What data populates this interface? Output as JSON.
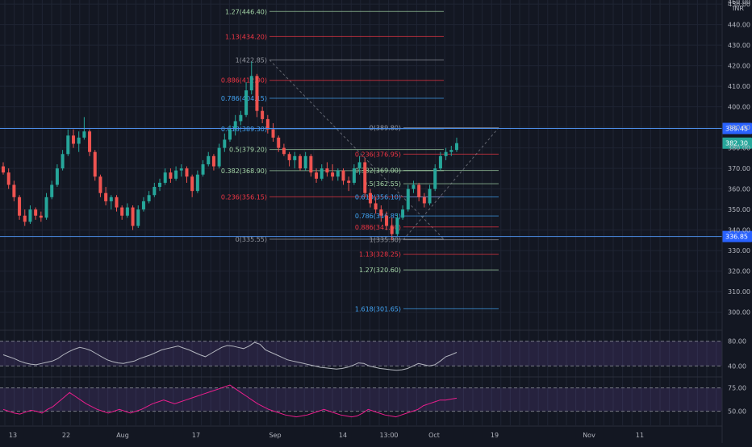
{
  "chart_data": {
    "type": "candlestick",
    "currency": "INR",
    "xlabels": [
      "13",
      "22",
      "Aug",
      "17",
      "Sep",
      "14",
      "13:00",
      "Oct",
      "19",
      "Nov",
      "11"
    ],
    "price_axis": {
      "ylim": [
        292,
        452
      ],
      "ticks": [
        300,
        310,
        320,
        330,
        340,
        350,
        360,
        370,
        380,
        390,
        400,
        410,
        420,
        430,
        440,
        450
      ],
      "tick_labels": [
        "300.00",
        "310.00",
        "320.00",
        "330.00",
        "340.00",
        "350.00",
        "360.00",
        "370.00",
        "380.00",
        "390.00",
        "400.00",
        "410.00",
        "420.00",
        "430.00",
        "440.00",
        "450.00"
      ],
      "top_label": "460.00"
    },
    "candles": [
      {
        "o": 371,
        "h": 373,
        "l": 367,
        "c": 368
      },
      {
        "o": 368,
        "h": 370,
        "l": 360,
        "c": 362
      },
      {
        "o": 362,
        "h": 364,
        "l": 354,
        "c": 356
      },
      {
        "o": 356,
        "h": 357,
        "l": 345,
        "c": 347
      },
      {
        "o": 347,
        "h": 350,
        "l": 342,
        "c": 344
      },
      {
        "o": 344,
        "h": 352,
        "l": 343,
        "c": 350
      },
      {
        "o": 350,
        "h": 351,
        "l": 345,
        "c": 347
      },
      {
        "o": 347,
        "h": 349,
        "l": 344,
        "c": 346
      },
      {
        "o": 346,
        "h": 358,
        "l": 345,
        "c": 356
      },
      {
        "o": 356,
        "h": 364,
        "l": 355,
        "c": 362
      },
      {
        "o": 362,
        "h": 372,
        "l": 361,
        "c": 370
      },
      {
        "o": 370,
        "h": 379,
        "l": 369,
        "c": 377
      },
      {
        "o": 377,
        "h": 389,
        "l": 376,
        "c": 386
      },
      {
        "o": 386,
        "h": 389,
        "l": 380,
        "c": 382
      },
      {
        "o": 382,
        "h": 388,
        "l": 378,
        "c": 385
      },
      {
        "o": 385,
        "h": 395,
        "l": 384,
        "c": 388
      },
      {
        "o": 388,
        "h": 389,
        "l": 376,
        "c": 378
      },
      {
        "o": 378,
        "h": 379,
        "l": 364,
        "c": 366
      },
      {
        "o": 366,
        "h": 367,
        "l": 356,
        "c": 358
      },
      {
        "o": 358,
        "h": 361,
        "l": 352,
        "c": 354
      },
      {
        "o": 354,
        "h": 357,
        "l": 350,
        "c": 356
      },
      {
        "o": 356,
        "h": 357,
        "l": 349,
        "c": 351
      },
      {
        "o": 351,
        "h": 352,
        "l": 345,
        "c": 347
      },
      {
        "o": 347,
        "h": 353,
        "l": 346,
        "c": 351
      },
      {
        "o": 351,
        "h": 352,
        "l": 340,
        "c": 342
      },
      {
        "o": 342,
        "h": 352,
        "l": 341,
        "c": 350
      },
      {
        "o": 350,
        "h": 356,
        "l": 349,
        "c": 354
      },
      {
        "o": 354,
        "h": 359,
        "l": 353,
        "c": 357
      },
      {
        "o": 357,
        "h": 363,
        "l": 356,
        "c": 361
      },
      {
        "o": 361,
        "h": 365,
        "l": 359,
        "c": 363
      },
      {
        "o": 363,
        "h": 370,
        "l": 362,
        "c": 368
      },
      {
        "o": 368,
        "h": 370,
        "l": 363,
        "c": 365
      },
      {
        "o": 365,
        "h": 371,
        "l": 364,
        "c": 369
      },
      {
        "o": 369,
        "h": 372,
        "l": 366,
        "c": 370
      },
      {
        "o": 370,
        "h": 371,
        "l": 363,
        "c": 366
      },
      {
        "o": 366,
        "h": 367,
        "l": 356,
        "c": 359
      },
      {
        "o": 359,
        "h": 369,
        "l": 358,
        "c": 367
      },
      {
        "o": 367,
        "h": 374,
        "l": 366,
        "c": 372
      },
      {
        "o": 372,
        "h": 378,
        "l": 371,
        "c": 376
      },
      {
        "o": 376,
        "h": 377,
        "l": 369,
        "c": 371
      },
      {
        "o": 371,
        "h": 382,
        "l": 370,
        "c": 380
      },
      {
        "o": 380,
        "h": 387,
        "l": 378,
        "c": 384
      },
      {
        "o": 384,
        "h": 391,
        "l": 383,
        "c": 389
      },
      {
        "o": 389,
        "h": 396,
        "l": 386,
        "c": 393
      },
      {
        "o": 393,
        "h": 398,
        "l": 391,
        "c": 396
      },
      {
        "o": 396,
        "h": 412,
        "l": 395,
        "c": 408
      },
      {
        "o": 408,
        "h": 422,
        "l": 406,
        "c": 415
      },
      {
        "o": 415,
        "h": 416,
        "l": 395,
        "c": 398
      },
      {
        "o": 398,
        "h": 400,
        "l": 392,
        "c": 394
      },
      {
        "o": 394,
        "h": 396,
        "l": 387,
        "c": 389
      },
      {
        "o": 389,
        "h": 392,
        "l": 383,
        "c": 385
      },
      {
        "o": 385,
        "h": 386,
        "l": 378,
        "c": 380
      },
      {
        "o": 380,
        "h": 382,
        "l": 376,
        "c": 377
      },
      {
        "o": 377,
        "h": 378,
        "l": 371,
        "c": 374
      },
      {
        "o": 374,
        "h": 378,
        "l": 370,
        "c": 376
      },
      {
        "o": 376,
        "h": 377,
        "l": 369,
        "c": 370
      },
      {
        "o": 370,
        "h": 378,
        "l": 369,
        "c": 376
      },
      {
        "o": 376,
        "h": 377,
        "l": 366,
        "c": 368
      },
      {
        "o": 368,
        "h": 370,
        "l": 363,
        "c": 365
      },
      {
        "o": 365,
        "h": 372,
        "l": 364,
        "c": 370
      },
      {
        "o": 370,
        "h": 373,
        "l": 366,
        "c": 368
      },
      {
        "o": 368,
        "h": 372,
        "l": 364,
        "c": 366
      },
      {
        "o": 366,
        "h": 370,
        "l": 364,
        "c": 369
      },
      {
        "o": 369,
        "h": 370,
        "l": 362,
        "c": 364
      },
      {
        "o": 364,
        "h": 366,
        "l": 359,
        "c": 363
      },
      {
        "o": 363,
        "h": 372,
        "l": 362,
        "c": 370
      },
      {
        "o": 370,
        "h": 376,
        "l": 367,
        "c": 373
      },
      {
        "o": 373,
        "h": 375,
        "l": 356,
        "c": 358
      },
      {
        "o": 358,
        "h": 360,
        "l": 351,
        "c": 353
      },
      {
        "o": 353,
        "h": 356,
        "l": 348,
        "c": 350
      },
      {
        "o": 350,
        "h": 352,
        "l": 344,
        "c": 347
      },
      {
        "o": 347,
        "h": 349,
        "l": 340,
        "c": 342
      },
      {
        "o": 342,
        "h": 346,
        "l": 335,
        "c": 338
      },
      {
        "o": 338,
        "h": 348,
        "l": 337,
        "c": 346
      },
      {
        "o": 346,
        "h": 352,
        "l": 345,
        "c": 350
      },
      {
        "o": 350,
        "h": 362,
        "l": 349,
        "c": 360
      },
      {
        "o": 360,
        "h": 364,
        "l": 358,
        "c": 362
      },
      {
        "o": 362,
        "h": 363,
        "l": 354,
        "c": 356
      },
      {
        "o": 356,
        "h": 358,
        "l": 351,
        "c": 353
      },
      {
        "o": 353,
        "h": 362,
        "l": 352,
        "c": 360
      },
      {
        "o": 360,
        "h": 372,
        "l": 359,
        "c": 370
      },
      {
        "o": 370,
        "h": 378,
        "l": 369,
        "c": 376
      },
      {
        "o": 376,
        "h": 380,
        "l": 374,
        "c": 378
      },
      {
        "o": 378,
        "h": 381,
        "l": 376,
        "c": 379
      },
      {
        "o": 379,
        "h": 385,
        "l": 378,
        "c": 382.3
      }
    ],
    "price_labels": [
      {
        "text": "389.45",
        "value": 389.45,
        "type": "line"
      },
      {
        "text": "382.30",
        "value": 382.3,
        "type": "last"
      },
      {
        "text": "336.85",
        "value": 336.85,
        "type": "line"
      }
    ],
    "fib_set1": [
      {
        "label": "1.27(446.40)",
        "value": 446.4,
        "color": "#a5d6a7"
      },
      {
        "label": "1.13(434.20)",
        "value": 434.2,
        "color": "#f23645"
      },
      {
        "label": "1(422.85)",
        "value": 422.85,
        "color": "#9598a1"
      },
      {
        "label": "0.886(412.90)",
        "value": 412.9,
        "color": "#f23645"
      },
      {
        "label": "0.786(404.15)",
        "value": 404.15,
        "color": "#42a5f5"
      },
      {
        "label": "0.618(389.30)",
        "value": 389.3,
        "color": "#42a5f5"
      },
      {
        "label": "0.5(379.20)",
        "value": 379.2,
        "color": "#a5d6a7"
      },
      {
        "label": "0.382(368.90)",
        "value": 368.9,
        "color": "#a5d6a7"
      },
      {
        "label": "0.236(356.15)",
        "value": 356.15,
        "color": "#f23645"
      },
      {
        "label": "0(335.55)",
        "value": 335.55,
        "color": "#9598a1"
      }
    ],
    "fib_set2": [
      {
        "label": "0(389.80)",
        "value": 389.8,
        "color": "#9598a1"
      },
      {
        "label": "0.236(376.95)",
        "value": 376.95,
        "color": "#f23645"
      },
      {
        "label": "0.382(369.00)",
        "value": 369.0,
        "color": "#a5d6a7"
      },
      {
        "label": "0.5(362.55)",
        "value": 362.55,
        "color": "#a5d6a7"
      },
      {
        "label": "0.618(356.10)",
        "value": 356.1,
        "color": "#42a5f5"
      },
      {
        "label": "0.786(346.85)",
        "value": 346.85,
        "color": "#42a5f5"
      },
      {
        "label": "0.886(341.50)",
        "value": 341.5,
        "color": "#f23645"
      },
      {
        "label": "1(335.30)",
        "value": 335.3,
        "color": "#9598a1"
      },
      {
        "label": "1.13(328.25)",
        "value": 328.25,
        "color": "#f23645"
      },
      {
        "label": "1.27(320.60)",
        "value": 320.6,
        "color": "#a5d6a7"
      },
      {
        "label": "1.618(301.65)",
        "value": 301.65,
        "color": "#42a5f5"
      }
    ],
    "rsi1": {
      "ylim": [
        25,
        95
      ],
      "ticks": [
        80,
        40
      ],
      "tick_labels": [
        "80.00",
        "40.00"
      ],
      "values": [
        58,
        55,
        52,
        48,
        45,
        43,
        42,
        44,
        46,
        48,
        52,
        58,
        63,
        67,
        70,
        68,
        65,
        60,
        55,
        50,
        47,
        45,
        44,
        46,
        48,
        52,
        55,
        58,
        62,
        66,
        68,
        70,
        72,
        69,
        66,
        62,
        58,
        55,
        60,
        65,
        70,
        73,
        72,
        70,
        68,
        72,
        78,
        75,
        66,
        62,
        58,
        54,
        50,
        48,
        46,
        44,
        42,
        40,
        38,
        37,
        36,
        35,
        36,
        38,
        41,
        45,
        44,
        40,
        38,
        36,
        35,
        34,
        33,
        34,
        36,
        40,
        44,
        42,
        40,
        42,
        48,
        55,
        58,
        62
      ]
    },
    "rsi2": {
      "ylim": [
        35,
        85
      ],
      "ticks": [
        75,
        50
      ],
      "tick_labels": [
        "75.00",
        "50.00"
      ],
      "values": [
        52,
        50,
        48,
        47,
        49,
        51,
        50,
        48,
        52,
        55,
        60,
        65,
        70,
        66,
        62,
        58,
        55,
        52,
        50,
        48,
        50,
        52,
        50,
        48,
        50,
        52,
        55,
        58,
        60,
        62,
        60,
        58,
        60,
        62,
        64,
        66,
        68,
        70,
        72,
        74,
        76,
        78,
        74,
        70,
        66,
        62,
        58,
        55,
        52,
        50,
        48,
        46,
        45,
        44,
        45,
        46,
        48,
        50,
        52,
        50,
        48,
        46,
        45,
        44,
        45,
        48,
        52,
        50,
        48,
        46,
        45,
        44,
        46,
        48,
        50,
        52,
        56,
        58,
        60,
        62,
        62,
        63,
        64
      ]
    }
  }
}
